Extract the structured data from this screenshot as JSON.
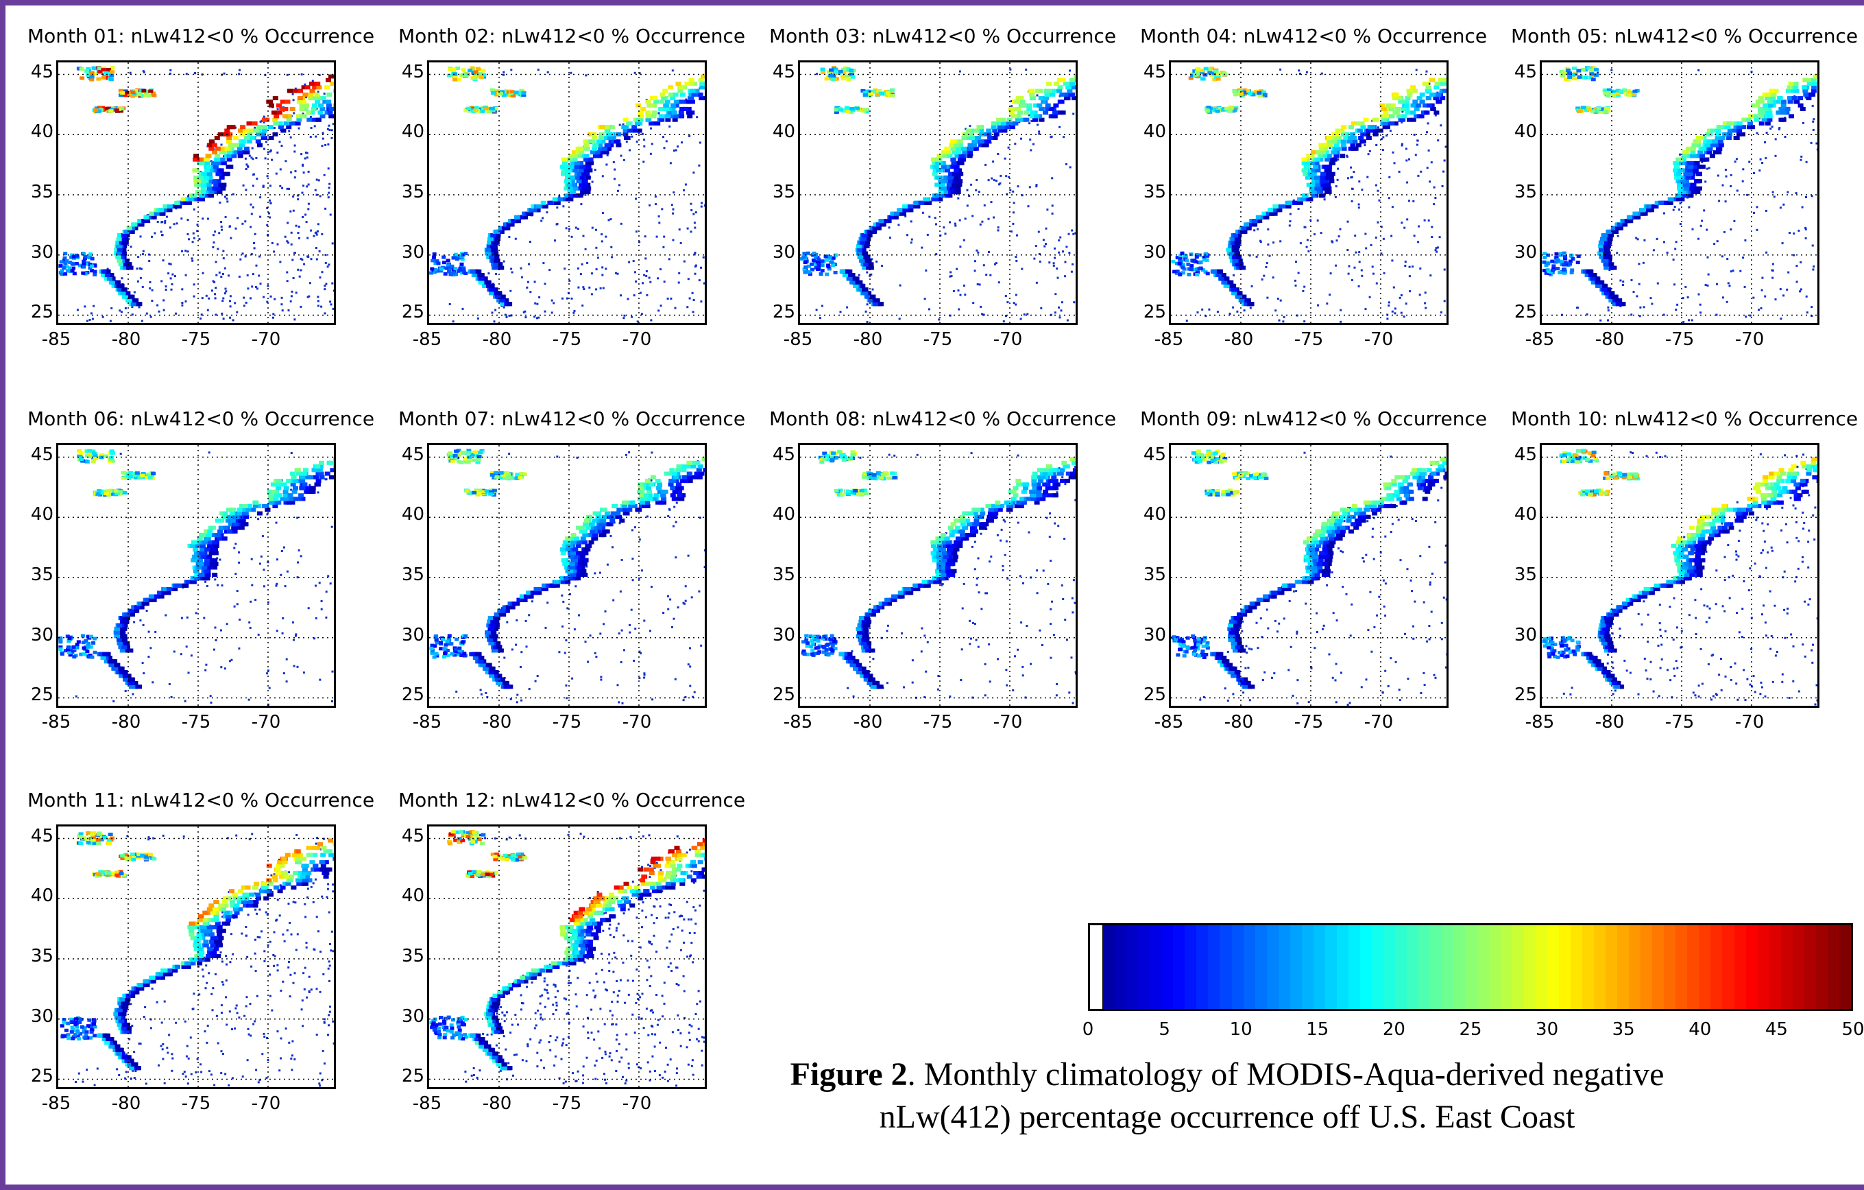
{
  "figure": {
    "caption_label": "Figure 2",
    "caption_text": ". Monthly climatology of MODIS-Aqua-derived negative nLw(412) percentage occurrence off U.S. East Coast"
  },
  "panels": [
    {
      "title": "Month 01: nLw412<0 % Occurrence",
      "intensity": 0.85
    },
    {
      "title": "Month 02: nLw412<0 % Occurrence",
      "intensity": 0.45
    },
    {
      "title": "Month 03: nLw412<0 % Occurrence",
      "intensity": 0.4
    },
    {
      "title": "Month 04: nLw412<0 % Occurrence",
      "intensity": 0.45
    },
    {
      "title": "Month 05: nLw412<0 % Occurrence",
      "intensity": 0.35
    },
    {
      "title": "Month 06: nLw412<0 % Occurrence",
      "intensity": 0.25
    },
    {
      "title": "Month 07: nLw412<0 % Occurrence",
      "intensity": 0.25
    },
    {
      "title": "Month 08: nLw412<0 % Occurrence",
      "intensity": 0.25
    },
    {
      "title": "Month 09: nLw412<0 % Occurrence",
      "intensity": 0.3
    },
    {
      "title": "Month 10: nLw412<0 % Occurrence",
      "intensity": 0.45
    },
    {
      "title": "Month 11: nLw412<0 % Occurrence",
      "intensity": 0.55
    },
    {
      "title": "Month 12: nLw412<0 % Occurrence",
      "intensity": 0.75
    }
  ],
  "axes": {
    "x_ticks": [
      "-85",
      "-80",
      "-75",
      "-70"
    ],
    "y_ticks": [
      "45",
      "40",
      "35",
      "30",
      "25"
    ]
  },
  "colorbar": {
    "ticks": [
      "0",
      "5",
      "10",
      "15",
      "20",
      "25",
      "30",
      "35",
      "40",
      "45",
      "50"
    ],
    "range": [
      0,
      50
    ],
    "colormap": "jet"
  },
  "chart_data": {
    "type": "heatmap",
    "x_range": [
      -85,
      -65
    ],
    "y_range": [
      24,
      46
    ],
    "value_range": [
      0,
      50
    ]
  }
}
